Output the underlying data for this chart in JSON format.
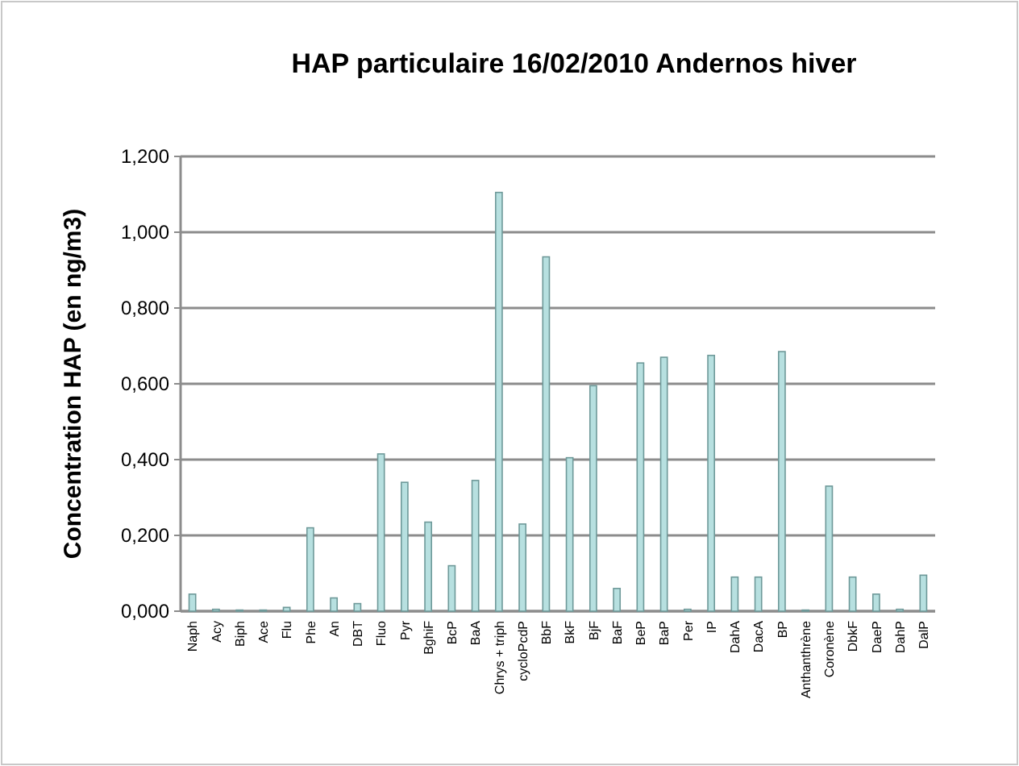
{
  "chart_data": {
    "type": "bar",
    "title": "HAP particulaire 16/02/2010 Andernos hiver",
    "ylabel": "Concentration HAP (en ng/m3)",
    "categories": [
      "Naph",
      "Acy",
      "Biph",
      "Ace",
      "Flu",
      "Phe",
      "An",
      "DBT",
      "Fluo",
      "Pyr",
      "BghiF",
      "BcP",
      "BaA",
      "Chrys + triph",
      "cycloPcdP",
      "BbF",
      "BkF",
      "BjF",
      "BaF",
      "BeP",
      "BaP",
      "Per",
      "IP",
      "DahA",
      "DacA",
      "BP",
      "Anthanthrène",
      "Coronène",
      "DbkF",
      "DaeP",
      "DahP",
      "DalP"
    ],
    "values": [
      0.045,
      0.005,
      0.003,
      0.003,
      0.01,
      0.22,
      0.035,
      0.02,
      0.415,
      0.34,
      0.235,
      0.12,
      0.345,
      1.105,
      0.23,
      0.935,
      0.405,
      0.595,
      0.06,
      0.655,
      0.67,
      0.005,
      0.675,
      0.09,
      0.09,
      0.685,
      0.003,
      0.33,
      0.09,
      0.045,
      0.005,
      0.095
    ],
    "color": "#b7e0e0",
    "ylim": [
      0,
      1.2
    ],
    "yticks": [
      {
        "value": 0,
        "label": "0,000"
      },
      {
        "value": 0.2,
        "label": "0,200"
      },
      {
        "value": 0.4,
        "label": "0,400"
      },
      {
        "value": 0.6,
        "label": "0,600"
      },
      {
        "value": 0.8,
        "label": "0,800"
      },
      {
        "value": 1,
        "label": "1,000"
      },
      {
        "value": 1.2,
        "label": "1,200"
      }
    ],
    "grid": "y"
  }
}
